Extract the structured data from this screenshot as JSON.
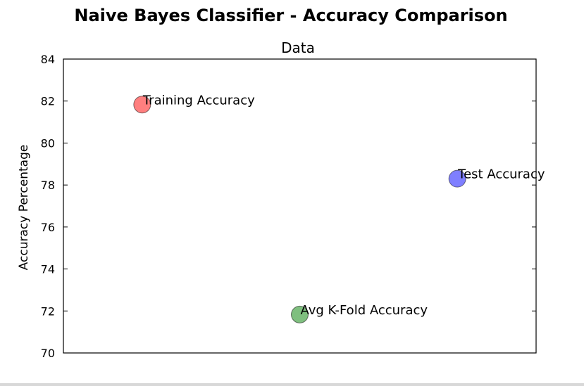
{
  "chart_data": {
    "type": "scatter",
    "suptitle": "Naive Bayes Classifier - Accuracy Comparison",
    "title": "Data",
    "xlabel": "",
    "ylabel": "Accuracy Percentage",
    "ylim": [
      70,
      84
    ],
    "yticks": [
      70,
      72,
      74,
      76,
      78,
      80,
      82,
      84
    ],
    "xticks_visible": false,
    "grid": false,
    "legend": "none",
    "points": [
      {
        "label": "Training Accuracy",
        "x": 1,
        "y": 81.83,
        "color": "#ff0000"
      },
      {
        "label": "Avg K-Fold Accuracy",
        "x": 2,
        "y": 71.83,
        "color": "#008000"
      },
      {
        "label": "Test Accuracy",
        "x": 3,
        "y": 78.3,
        "color": "#0000ff"
      }
    ],
    "xlim": [
      0.5,
      3.5
    ]
  }
}
